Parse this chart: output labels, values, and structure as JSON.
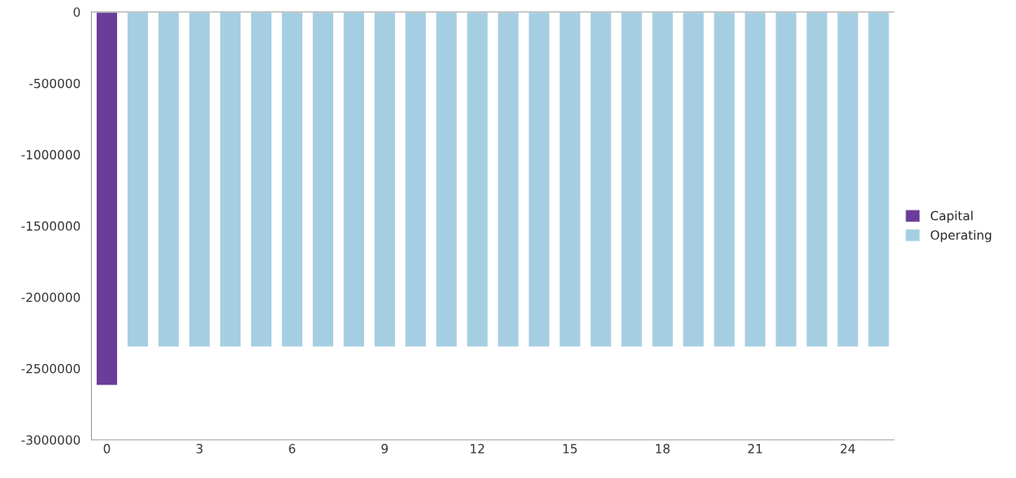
{
  "chart_data": {
    "type": "bar",
    "categories": [
      "0",
      null,
      null,
      "3",
      null,
      null,
      "6",
      null,
      null,
      "9",
      null,
      null,
      "12",
      null,
      null,
      "15",
      null,
      null,
      "18",
      null,
      null,
      "21",
      null,
      null,
      "24",
      null
    ],
    "series": [
      {
        "name": "Capital",
        "color": "#6a3d9a",
        "values": [
          -2620000,
          null,
          null,
          null,
          null,
          null,
          null,
          null,
          null,
          null,
          null,
          null,
          null,
          null,
          null,
          null,
          null,
          null,
          null,
          null,
          null,
          null,
          null,
          null,
          null,
          null
        ]
      },
      {
        "name": "Operating",
        "color": "#a6cee3",
        "values": [
          null,
          -2350000,
          -2350000,
          -2350000,
          -2350000,
          -2350000,
          -2350000,
          -2350000,
          -2350000,
          -2350000,
          -2350000,
          -2350000,
          -2350000,
          -2350000,
          -2350000,
          -2350000,
          -2350000,
          -2350000,
          -2350000,
          -2350000,
          -2350000,
          -2350000,
          -2350000,
          -2350000,
          -2350000,
          -2350000
        ]
      }
    ],
    "ylim": [
      -3000000,
      0
    ],
    "yticks": [
      -3000000,
      -2500000,
      -2000000,
      -1500000,
      -1000000,
      -500000,
      0
    ],
    "grid": false,
    "legend": "right"
  }
}
